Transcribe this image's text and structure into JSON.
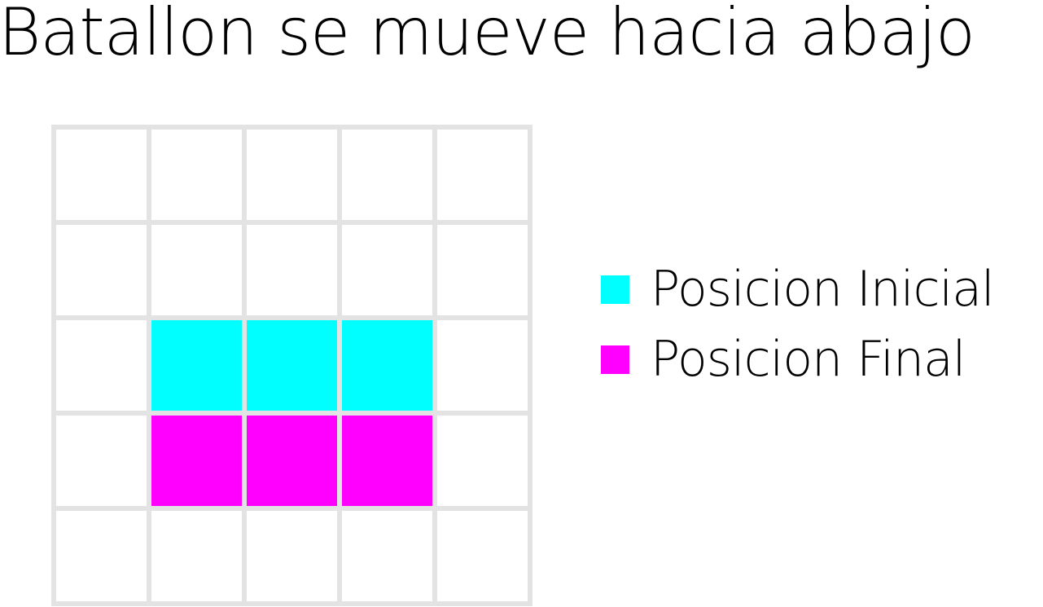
{
  "title": "Batallon se mueve hacia abajo",
  "grid": {
    "rows": 5,
    "cols": 5,
    "cell_fill": "#ffffff",
    "line_color": "#e3e3e3"
  },
  "positions": [
    {
      "key": "inicial",
      "label": "Posicion Inicial",
      "color": "#00ffff",
      "cells": [
        [
          2,
          1
        ],
        [
          2,
          2
        ],
        [
          2,
          3
        ]
      ]
    },
    {
      "key": "final",
      "label": "Posicion Final",
      "color": "#ff00ff",
      "cells": [
        [
          3,
          1
        ],
        [
          3,
          2
        ],
        [
          3,
          3
        ]
      ]
    }
  ]
}
